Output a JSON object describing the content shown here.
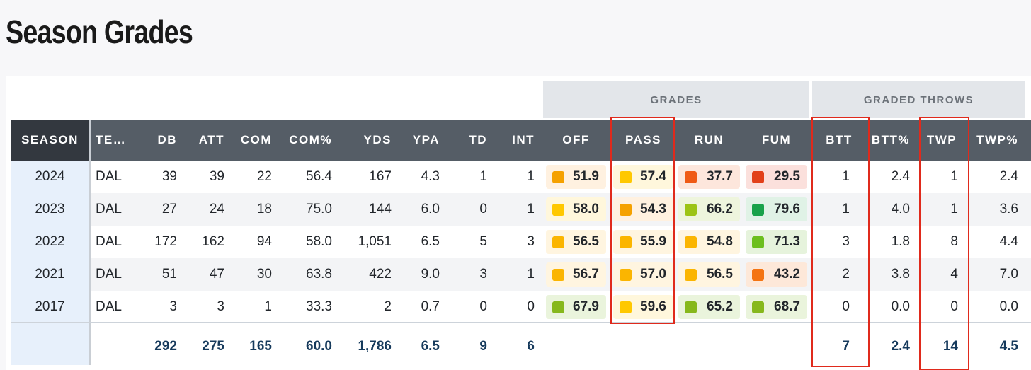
{
  "page_title": "Season Grades",
  "groups": {
    "grades": "GRADES",
    "graded_throws": "GRADED THROWS"
  },
  "columns": [
    "SEASON",
    "TE…",
    "DB",
    "ATT",
    "COM",
    "COM%",
    "YDS",
    "YPA",
    "TD",
    "INT",
    "OFF",
    "PASS",
    "RUN",
    "FUM",
    "BTT",
    "BTT%",
    "TWP",
    "TWP%"
  ],
  "colors": {
    "orange": "#f5a100",
    "yellow": "#ffc800",
    "amber": "#fbb500",
    "red_orange": "#ef5a16",
    "red": "#e2401a",
    "light_green": "#9cc417",
    "green": "#18a24a",
    "mid_green": "#6cbf1e",
    "dark_orange": "#f47412",
    "lime": "#86b81c"
  },
  "rows": [
    {
      "season": "2024",
      "team": "DAL",
      "db": "39",
      "att": "39",
      "com": "22",
      "com_pct": "56.4",
      "yds": "167",
      "ypa": "4.3",
      "td": "1",
      "int": "1",
      "off": {
        "v": "51.9",
        "c": "orange"
      },
      "pass": {
        "v": "57.4",
        "c": "yellow"
      },
      "run": {
        "v": "37.7",
        "c": "red_orange"
      },
      "fum": {
        "v": "29.5",
        "c": "red"
      },
      "btt": "1",
      "btt_pct": "2.4",
      "twp": "1",
      "twp_pct": "2.4"
    },
    {
      "season": "2023",
      "team": "DAL",
      "db": "27",
      "att": "24",
      "com": "18",
      "com_pct": "75.0",
      "yds": "144",
      "ypa": "6.0",
      "td": "0",
      "int": "1",
      "off": {
        "v": "58.0",
        "c": "yellow"
      },
      "pass": {
        "v": "54.3",
        "c": "orange"
      },
      "run": {
        "v": "66.2",
        "c": "light_green"
      },
      "fum": {
        "v": "79.6",
        "c": "green"
      },
      "btt": "1",
      "btt_pct": "4.0",
      "twp": "1",
      "twp_pct": "3.6"
    },
    {
      "season": "2022",
      "team": "DAL",
      "db": "172",
      "att": "162",
      "com": "94",
      "com_pct": "58.0",
      "yds": "1,051",
      "ypa": "6.5",
      "td": "5",
      "int": "3",
      "off": {
        "v": "56.5",
        "c": "amber"
      },
      "pass": {
        "v": "55.9",
        "c": "amber"
      },
      "run": {
        "v": "54.8",
        "c": "amber"
      },
      "fum": {
        "v": "71.3",
        "c": "mid_green"
      },
      "btt": "3",
      "btt_pct": "1.8",
      "twp": "8",
      "twp_pct": "4.4"
    },
    {
      "season": "2021",
      "team": "DAL",
      "db": "51",
      "att": "47",
      "com": "30",
      "com_pct": "63.8",
      "yds": "422",
      "ypa": "9.0",
      "td": "3",
      "int": "1",
      "off": {
        "v": "56.7",
        "c": "amber"
      },
      "pass": {
        "v": "57.0",
        "c": "amber"
      },
      "run": {
        "v": "56.5",
        "c": "amber"
      },
      "fum": {
        "v": "43.2",
        "c": "dark_orange"
      },
      "btt": "2",
      "btt_pct": "3.8",
      "twp": "4",
      "twp_pct": "7.0"
    },
    {
      "season": "2017",
      "team": "DAL",
      "db": "3",
      "att": "3",
      "com": "1",
      "com_pct": "33.3",
      "yds": "2",
      "ypa": "0.7",
      "td": "0",
      "int": "0",
      "off": {
        "v": "67.9",
        "c": "lime"
      },
      "pass": {
        "v": "59.6",
        "c": "yellow"
      },
      "run": {
        "v": "65.2",
        "c": "lime"
      },
      "fum": {
        "v": "68.7",
        "c": "lime"
      },
      "btt": "0",
      "btt_pct": "0.0",
      "twp": "0",
      "twp_pct": "0.0"
    }
  ],
  "totals": {
    "db": "292",
    "att": "275",
    "com": "165",
    "com_pct": "60.0",
    "yds": "1,786",
    "ypa": "6.5",
    "td": "9",
    "int": "6",
    "btt": "7",
    "btt_pct": "2.4",
    "twp": "14",
    "twp_pct": "4.5"
  }
}
